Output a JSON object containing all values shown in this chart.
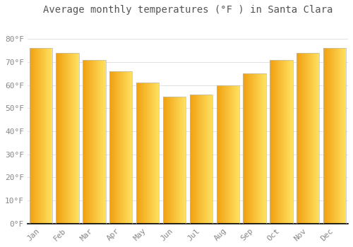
{
  "months": [
    "Jan",
    "Feb",
    "Mar",
    "Apr",
    "May",
    "Jun",
    "Jul",
    "Aug",
    "Sep",
    "Oct",
    "Nov",
    "Dec"
  ],
  "values": [
    76,
    74,
    71,
    66,
    61,
    55,
    56,
    60,
    65,
    71,
    74,
    76
  ],
  "bar_color_left": "#F5A623",
  "bar_color_right": "#FFD966",
  "bar_color_main": "#FBAB18",
  "title": "Average monthly temperatures (°F ) in Santa Clara",
  "ylim": [
    0,
    88
  ],
  "yticks": [
    0,
    10,
    20,
    30,
    40,
    50,
    60,
    70,
    80
  ],
  "ytick_labels": [
    "0°F",
    "10°F",
    "20°F",
    "30°F",
    "40°F",
    "50°F",
    "60°F",
    "70°F",
    "80°F"
  ],
  "background_color": "#FFFFFF",
  "grid_color": "#DDDDDD",
  "title_fontsize": 10,
  "tick_fontsize": 8,
  "bar_width": 0.85
}
